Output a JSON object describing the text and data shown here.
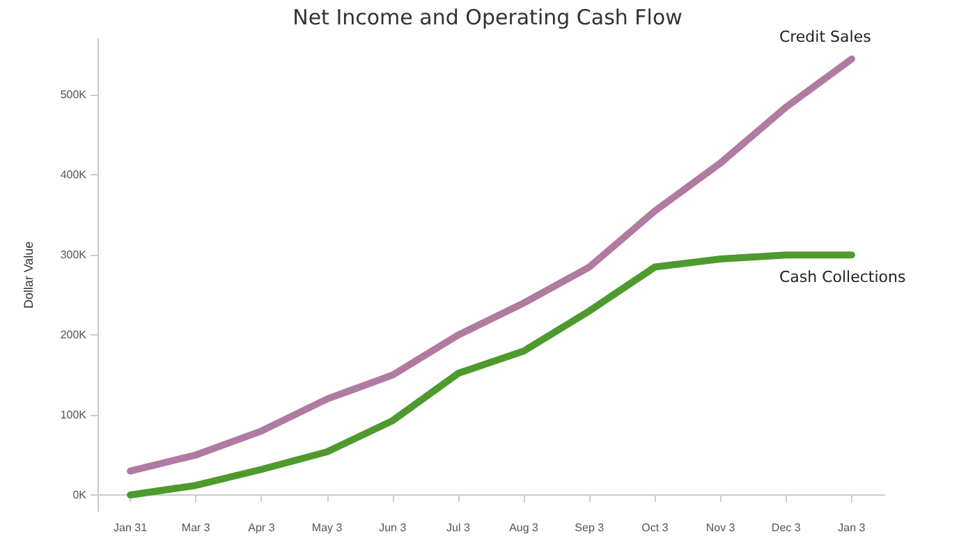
{
  "chart_data": {
    "type": "line",
    "title": "Net Income and Operating Cash Flow",
    "ylabel": "Dollar Value",
    "categories": [
      "Jan 31",
      "Mar 3",
      "Apr 3",
      "May 3",
      "Jun 3",
      "Jul 3",
      "Aug 3",
      "Sep 3",
      "Oct 3",
      "Nov 3",
      "Dec 3",
      "Jan 3"
    ],
    "series": [
      {
        "name": "Credit Sales",
        "color": "#b07aa1",
        "values": [
          30000,
          50000,
          80000,
          120000,
          150000,
          200000,
          240000,
          285000,
          355000,
          415000,
          485000,
          545000
        ]
      },
      {
        "name": "Cash Collections",
        "color": "#4e9a2e",
        "values": [
          0,
          12000,
          32000,
          54000,
          93000,
          152000,
          180000,
          230000,
          285000,
          295000,
          300000,
          300000
        ]
      }
    ],
    "ylim": [
      -20000,
      570000
    ],
    "yticks": [
      {
        "value": 0,
        "label": "0K"
      },
      {
        "value": 100000,
        "label": "100K"
      },
      {
        "value": 200000,
        "label": "200K"
      },
      {
        "value": 300000,
        "label": "300K"
      },
      {
        "value": 400000,
        "label": "400K"
      },
      {
        "value": 500000,
        "label": "500K"
      }
    ],
    "legend": false,
    "grid": false,
    "marker": "none",
    "line_style": "solid"
  }
}
